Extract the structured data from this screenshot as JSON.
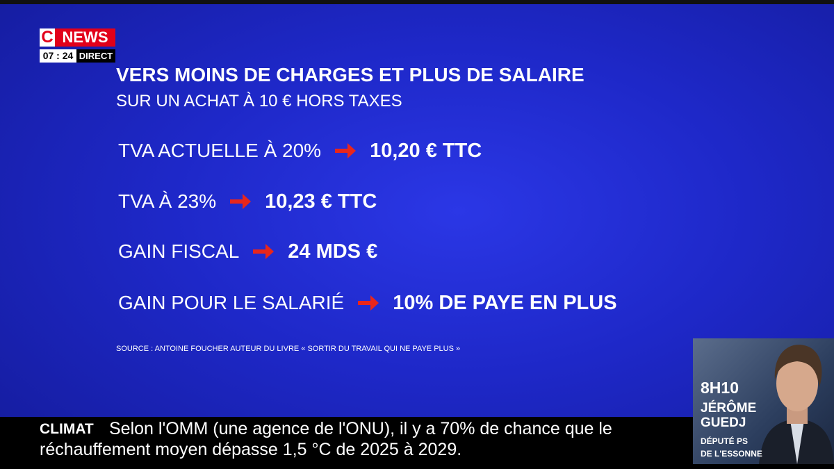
{
  "logo": {
    "brand_c": "C",
    "brand_news": "NEWS",
    "time": "07 : 24",
    "live": "DIRECT"
  },
  "panel": {
    "title": "VERS MOINS DE CHARGES ET PLUS DE SALAIRE",
    "subtitle": "SUR UN ACHAT À 10 € HORS TAXES",
    "rows": [
      {
        "label": "TVA ACTUELLE À 20%",
        "value": "10,20 € TTC"
      },
      {
        "label": "TVA À 23%",
        "value": "10,23 € TTC"
      },
      {
        "label": "GAIN FISCAL",
        "value": "24 MDS €"
      },
      {
        "label": "GAIN POUR LE SALARIÉ",
        "value": "10% DE PAYE EN PLUS"
      }
    ],
    "source": "SOURCE : ANTOINE FOUCHER AUTEUR DU LIVRE « SORTIR DU TRAVAIL QUI NE PAYE PLUS »"
  },
  "ticker": {
    "topic": "CLIMAT",
    "text_line1": "Selon l'OMM (une agence de l'ONU), il y a 70% de chance que le",
    "text_line2": "réchauffement moyen dépasse 1,5 °C de 2025 à 2029."
  },
  "guest": {
    "time": "8H10",
    "name_line1": "JÉRÔME",
    "name_line2": "GUEDJ",
    "role_line1": "DÉPUTÉ PS",
    "role_line2": "DE L'ESSONNE"
  }
}
